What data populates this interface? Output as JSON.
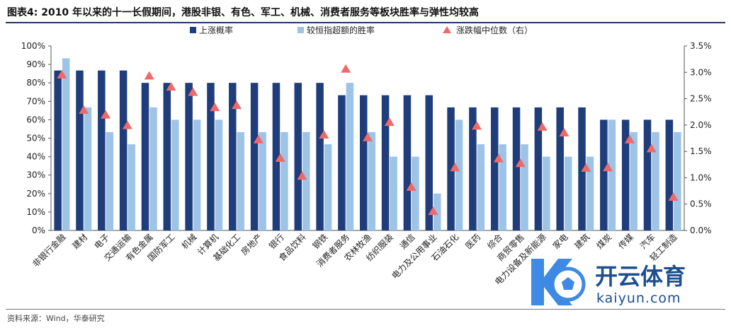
{
  "title": "图表4:  2010 年以来的十一长假期间，港股非银、有色、军工、机械、消费者服务等板块胜率与弹性均较高",
  "source": "资料来源：Wind，华泰研究",
  "watermark": {
    "brand": "开云体育",
    "url": "kaiyun.com"
  },
  "colors": {
    "up": "#1f3d7a",
    "beat": "#9dc3e6",
    "median": "#ee6a6a"
  },
  "chart_data": {
    "type": "bar",
    "categories": [
      "非银行金融",
      "建材",
      "电子",
      "交通运输",
      "有色金属",
      "国防军工",
      "机械",
      "计算机",
      "基础化工",
      "房地产",
      "银行",
      "食品饮料",
      "钢铁",
      "消费者服务",
      "农林牧渔",
      "纺织服装",
      "通信",
      "电力及公用事业",
      "石油石化",
      "医药",
      "综合",
      "商贸零售",
      "电力设备及新能源",
      "家电",
      "建筑",
      "煤炭",
      "传媒",
      "汽车",
      "轻工制造"
    ],
    "series": [
      {
        "name": "上涨概率",
        "type": "bar",
        "axis": "left",
        "values": [
          86.7,
          86.7,
          86.7,
          86.7,
          80,
          80,
          80,
          80,
          80,
          80,
          80,
          80,
          80,
          73.3,
          73.3,
          73.3,
          73.3,
          73.3,
          66.7,
          66.7,
          66.7,
          66.7,
          66.7,
          66.7,
          66.7,
          60,
          60,
          60,
          60
        ]
      },
      {
        "name": "较恒指超额的胜率",
        "type": "bar",
        "axis": "left",
        "values": [
          93.3,
          66.7,
          53.3,
          46.7,
          66.7,
          60,
          60,
          60,
          53.3,
          53.3,
          53.3,
          53.3,
          46.7,
          80,
          53.3,
          40,
          40,
          20,
          60,
          46.7,
          46.7,
          46.7,
          40,
          40,
          40,
          60,
          53.3,
          53.3,
          53.3
        ]
      },
      {
        "name": "涨跌幅中位数（右）",
        "type": "scatter",
        "axis": "right",
        "values": [
          2.95,
          2.28,
          2.19,
          1.99,
          2.93,
          2.72,
          2.62,
          2.33,
          2.37,
          1.72,
          1.37,
          1.03,
          1.81,
          3.06,
          1.76,
          2.05,
          0.82,
          0.36,
          1.19,
          1.98,
          1.36,
          1.27,
          1.96,
          1.85,
          1.18,
          1.19,
          1.72,
          1.55,
          0.63
        ]
      }
    ],
    "y_left": {
      "min": 0,
      "max": 100,
      "step": 10,
      "ticks": [
        "0%",
        "10%",
        "20%",
        "30%",
        "40%",
        "50%",
        "60%",
        "70%",
        "80%",
        "90%",
        "100%"
      ]
    },
    "y_right": {
      "min": 0,
      "max": 3.5,
      "step": 0.5,
      "ticks": [
        "0.0%",
        "0.5%",
        "1.0%",
        "1.5%",
        "2.0%",
        "2.5%",
        "3.0%",
        "3.5%"
      ]
    },
    "legend": [
      "上涨概率",
      "较恒指超额的胜率",
      "涨跌幅中位数（右）"
    ],
    "legend_position": "top",
    "grid": false
  }
}
